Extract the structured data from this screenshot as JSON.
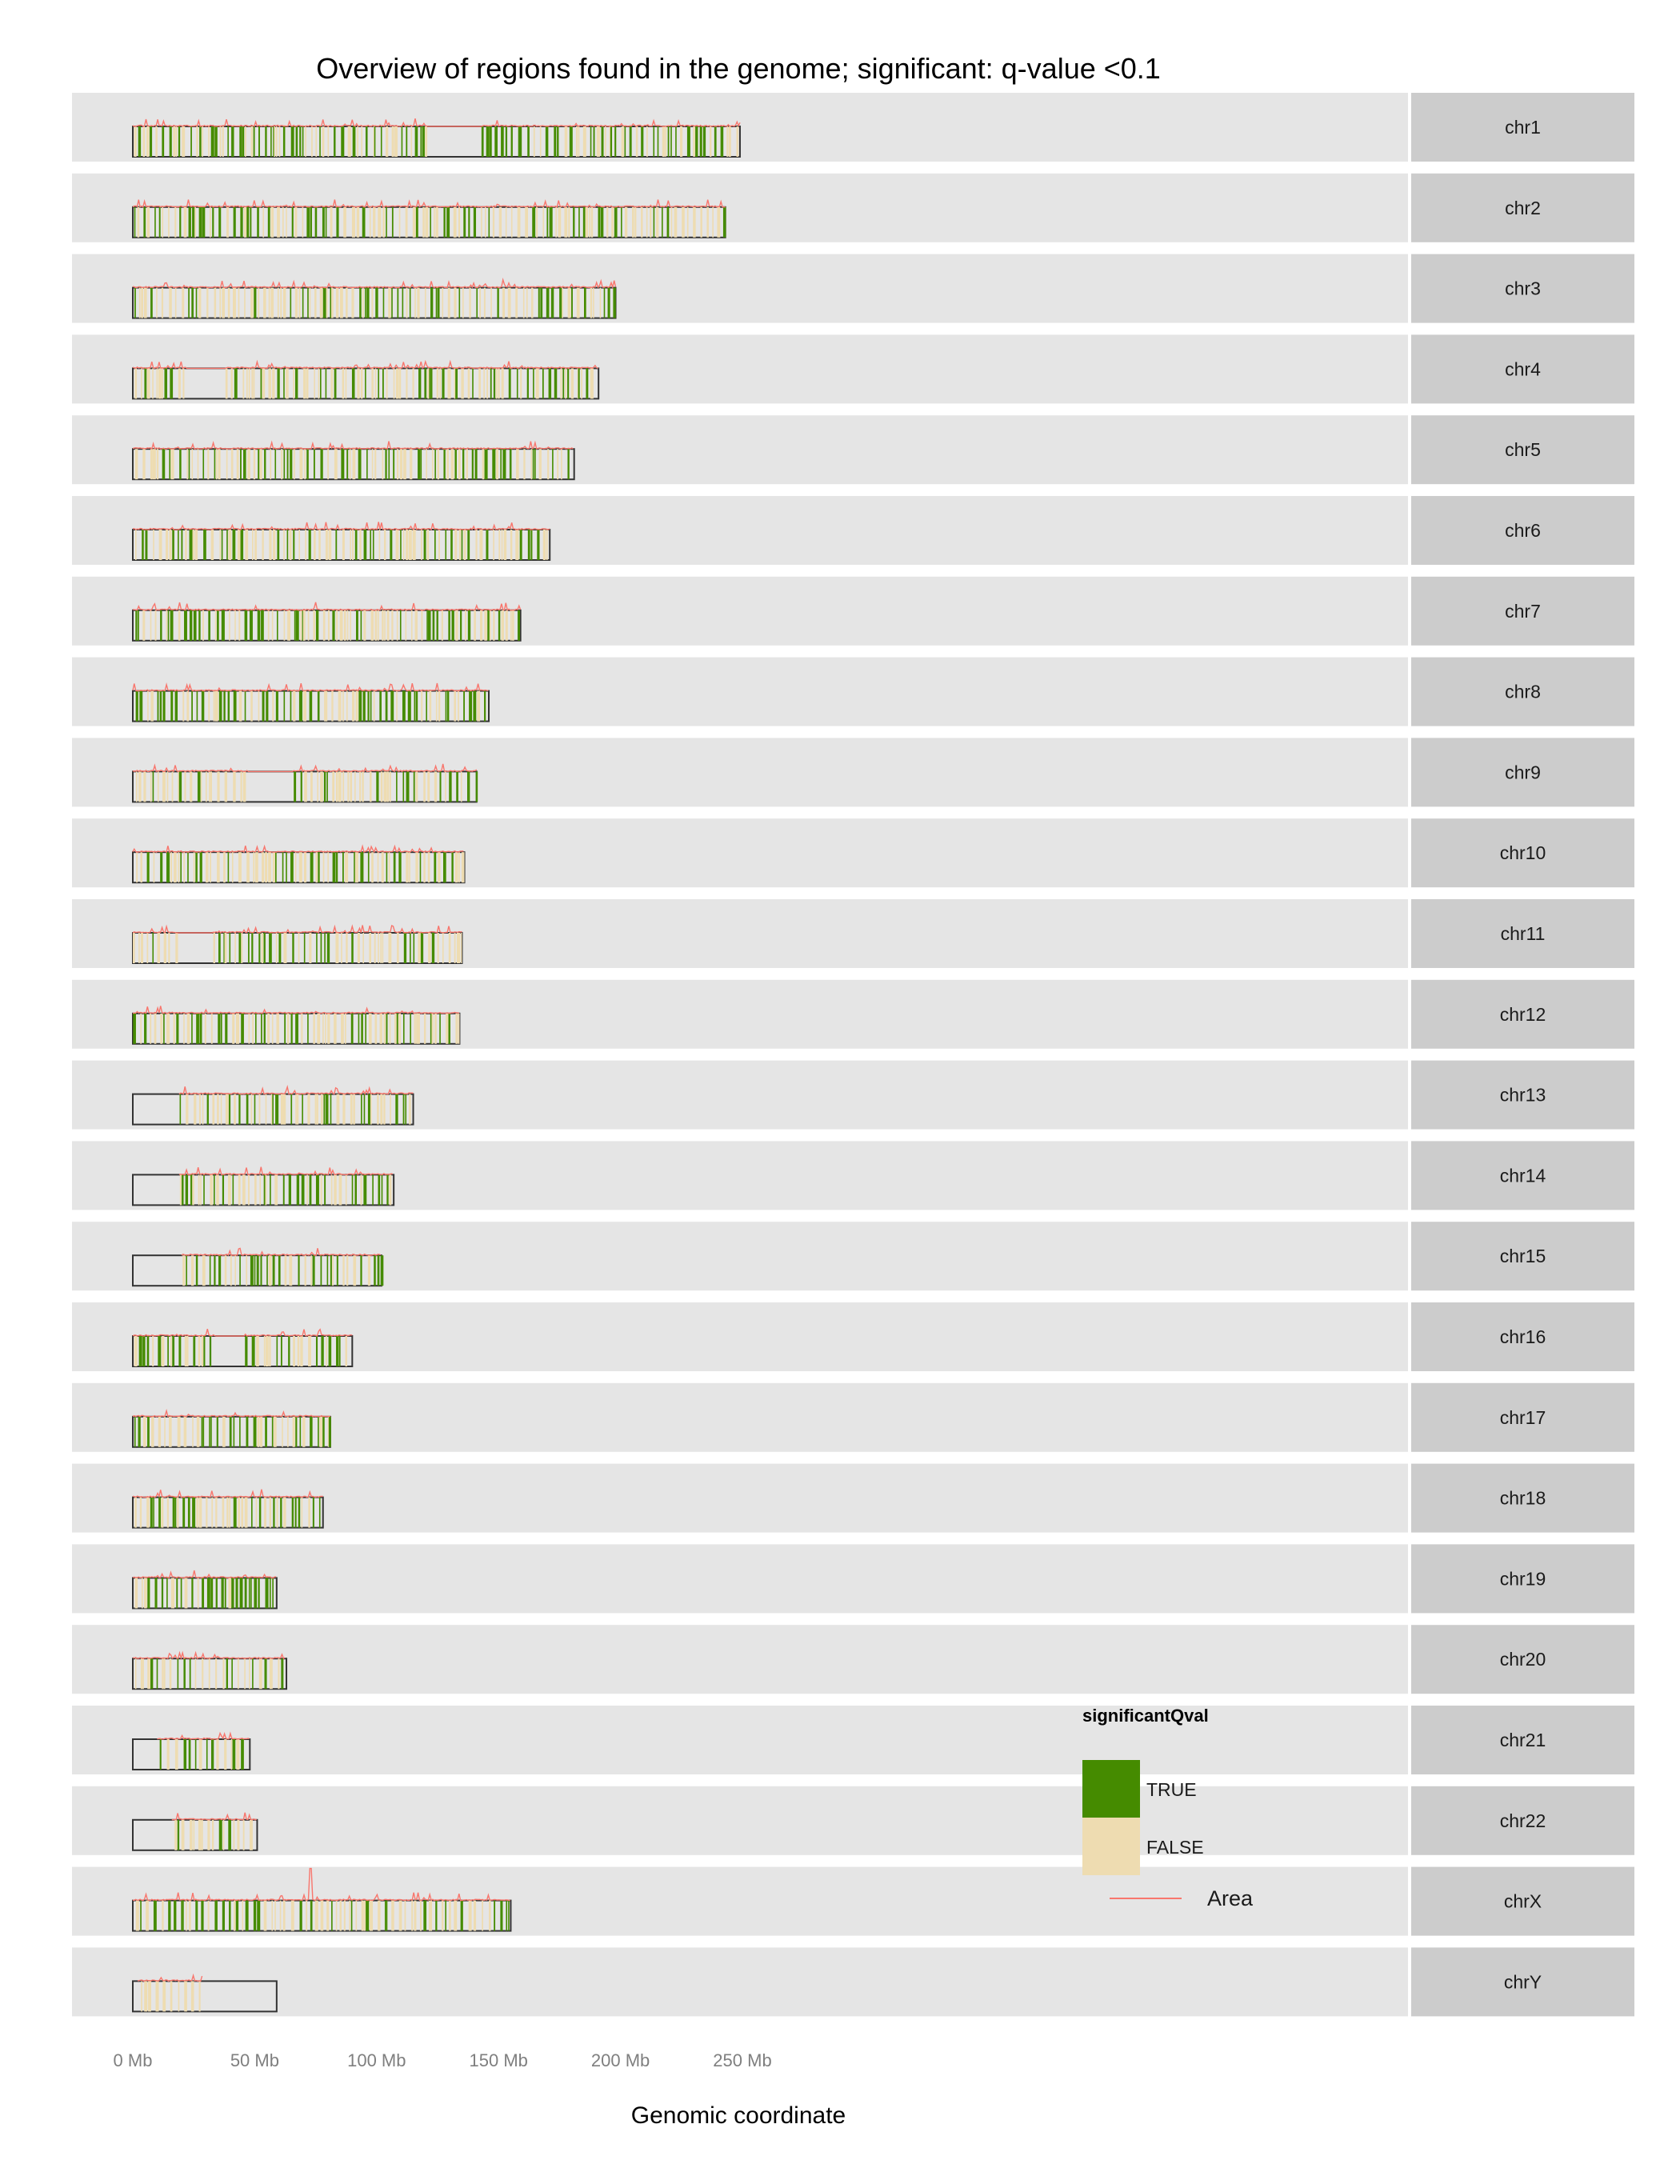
{
  "chart_data": {
    "type": "genome-overview",
    "title": "Overview of regions found in the genome; significant: q-value <0.1",
    "xlabel": "Genomic coordinate",
    "x_unit": "Mb",
    "xlim": [
      0,
      260
    ],
    "x_ticks": [
      0,
      50,
      100,
      150,
      200,
      250
    ],
    "x_tick_labels": [
      "0 Mb",
      "50 Mb",
      "100 Mb",
      "150 Mb",
      "200 Mb",
      "250 Mb"
    ],
    "legend": {
      "title": "significantQval",
      "placement": "inside-bottom-right",
      "entries": [
        {
          "label": "TRUE",
          "color": "#458b00"
        },
        {
          "label": "FALSE",
          "color": "#eedcb1"
        }
      ],
      "line_label": "Area",
      "line_color": "#f8766d"
    },
    "colors": {
      "significant": "#458b00",
      "not_significant": "#eedcb1",
      "area_line": "#f8766d",
      "panel_bg": "#e5e5e5",
      "strip_bg": "#cccccc",
      "ideogram_outline": "#333333"
    },
    "grid": false,
    "chromosomes": [
      {
        "name": "chr1",
        "length": 249,
        "regions_start": 0,
        "regions_end": 249,
        "gaps": [
          [
            121,
            143
          ]
        ],
        "sig_fraction": 0.55
      },
      {
        "name": "chr2",
        "length": 243,
        "regions_start": 0,
        "regions_end": 243,
        "gaps": [],
        "sig_fraction": 0.35
      },
      {
        "name": "chr3",
        "length": 198,
        "regions_start": 0,
        "regions_end": 198,
        "gaps": [],
        "sig_fraction": 0.45
      },
      {
        "name": "chr4",
        "length": 191,
        "regions_start": 0,
        "regions_end": 191,
        "gaps": [
          [
            22,
            38
          ]
        ],
        "sig_fraction": 0.35
      },
      {
        "name": "chr5",
        "length": 181,
        "regions_start": 0,
        "regions_end": 181,
        "gaps": [],
        "sig_fraction": 0.5
      },
      {
        "name": "chr6",
        "length": 171,
        "regions_start": 0,
        "regions_end": 171,
        "gaps": [],
        "sig_fraction": 0.4
      },
      {
        "name": "chr7",
        "length": 159,
        "regions_start": 0,
        "regions_end": 159,
        "gaps": [],
        "sig_fraction": 0.45
      },
      {
        "name": "chr8",
        "length": 146,
        "regions_start": 0,
        "regions_end": 146,
        "gaps": [],
        "sig_fraction": 0.5
      },
      {
        "name": "chr9",
        "length": 141,
        "regions_start": 0,
        "regions_end": 141,
        "gaps": [
          [
            47,
            66
          ]
        ],
        "sig_fraction": 0.35
      },
      {
        "name": "chr10",
        "length": 136,
        "regions_start": 0,
        "regions_end": 136,
        "gaps": [],
        "sig_fraction": 0.4
      },
      {
        "name": "chr11",
        "length": 135,
        "regions_start": 0,
        "regions_end": 135,
        "gaps": [
          [
            18,
            33
          ]
        ],
        "sig_fraction": 0.4
      },
      {
        "name": "chr12",
        "length": 134,
        "regions_start": 0,
        "regions_end": 134,
        "gaps": [],
        "sig_fraction": 0.4
      },
      {
        "name": "chr13",
        "length": 115,
        "regions_start": 19,
        "regions_end": 115,
        "gaps": [],
        "sig_fraction": 0.4
      },
      {
        "name": "chr14",
        "length": 107,
        "regions_start": 19,
        "regions_end": 107,
        "gaps": [],
        "sig_fraction": 0.35
      },
      {
        "name": "chr15",
        "length": 102,
        "regions_start": 20,
        "regions_end": 102,
        "gaps": [],
        "sig_fraction": 0.45
      },
      {
        "name": "chr16",
        "length": 90,
        "regions_start": 0,
        "regions_end": 90,
        "gaps": [
          [
            34,
            46
          ]
        ],
        "sig_fraction": 0.45
      },
      {
        "name": "chr17",
        "length": 81,
        "regions_start": 0,
        "regions_end": 81,
        "gaps": [],
        "sig_fraction": 0.5
      },
      {
        "name": "chr18",
        "length": 78,
        "regions_start": 0,
        "regions_end": 78,
        "gaps": [],
        "sig_fraction": 0.35
      },
      {
        "name": "chr19",
        "length": 59,
        "regions_start": 0,
        "regions_end": 59,
        "gaps": [],
        "sig_fraction": 0.6
      },
      {
        "name": "chr20",
        "length": 63,
        "regions_start": 0,
        "regions_end": 63,
        "gaps": [],
        "sig_fraction": 0.4
      },
      {
        "name": "chr21",
        "length": 48,
        "regions_start": 10,
        "regions_end": 48,
        "gaps": [],
        "sig_fraction": 0.55
      },
      {
        "name": "chr22",
        "length": 51,
        "regions_start": 16,
        "regions_end": 51,
        "gaps": [],
        "sig_fraction": 0.2
      },
      {
        "name": "chrX",
        "length": 155,
        "regions_start": 0,
        "regions_end": 155,
        "gaps": [],
        "sig_fraction": 0.4,
        "peak_at": 73
      },
      {
        "name": "chrY",
        "length": 59,
        "regions_start": 2,
        "regions_end": 29,
        "gaps": [],
        "sig_fraction": 0.0
      }
    ]
  }
}
